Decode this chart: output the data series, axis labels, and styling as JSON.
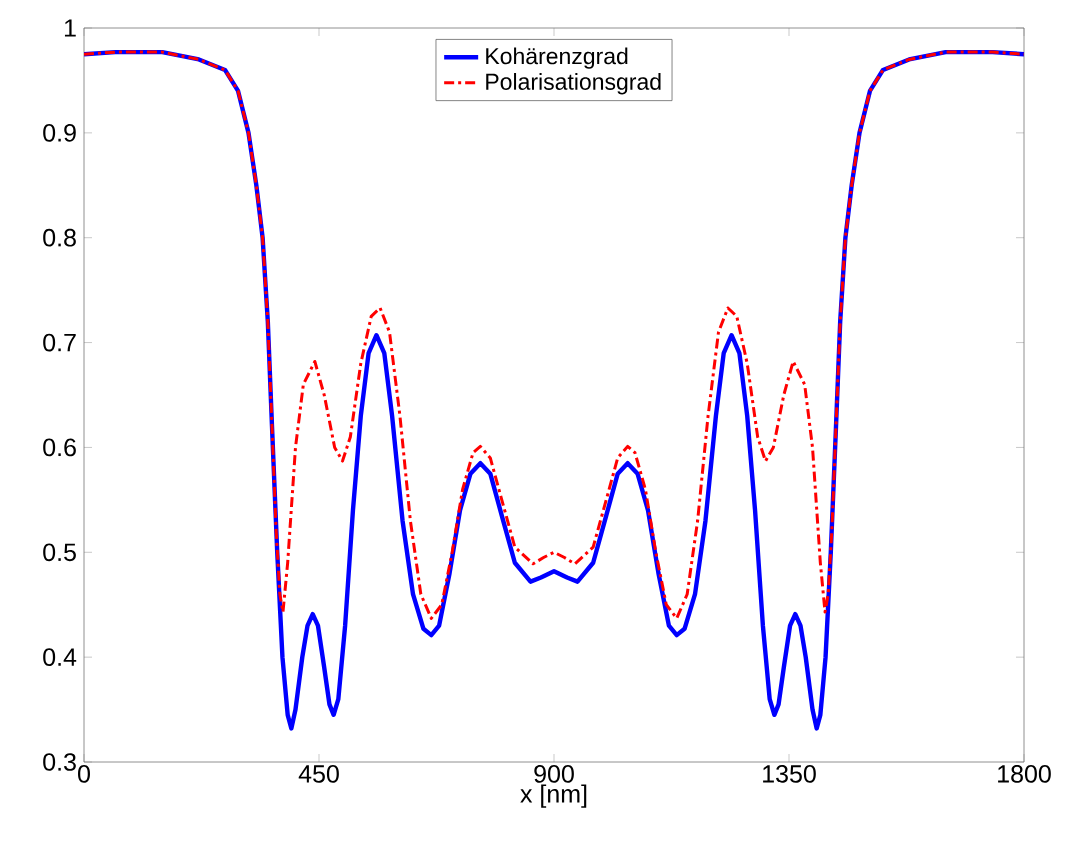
{
  "chart_data": {
    "type": "line",
    "xlabel": "x [nm]",
    "xlim": [
      0,
      1800
    ],
    "ylim": [
      0.3,
      1
    ],
    "xticks": [
      0,
      450,
      900,
      1350,
      1800
    ],
    "yticks": [
      0.3,
      0.4,
      0.5,
      0.6,
      0.7,
      0.8,
      0.9,
      1
    ],
    "grid": false,
    "legend": "top",
    "marker": "none",
    "series": [
      {
        "name": "Kohärenzgrad",
        "color": "#0000ff",
        "line_style": "solid",
        "x": [
          0,
          60,
          150,
          220,
          270,
          295,
          315,
          330,
          342,
          352,
          360,
          370,
          380,
          390,
          397,
          405,
          418,
          428,
          438,
          448,
          460,
          470,
          478,
          487,
          500,
          515,
          530,
          545,
          560,
          575,
          590,
          610,
          630,
          650,
          665,
          680,
          700,
          720,
          740,
          759,
          778,
          800,
          825,
          855,
          875,
          900,
          925,
          945,
          975,
          1000,
          1022,
          1041,
          1060,
          1080,
          1100,
          1120,
          1135,
          1150,
          1170,
          1190,
          1210,
          1225,
          1240,
          1255,
          1270,
          1285,
          1300,
          1313,
          1322,
          1330,
          1340,
          1352,
          1362,
          1372,
          1382,
          1395,
          1403,
          1410,
          1420,
          1430,
          1440,
          1448,
          1458,
          1470,
          1485,
          1505,
          1530,
          1580,
          1650,
          1740,
          1800
        ],
        "values": [
          0.975,
          0.977,
          0.977,
          0.97,
          0.96,
          0.94,
          0.9,
          0.85,
          0.8,
          0.72,
          0.62,
          0.5,
          0.4,
          0.345,
          0.332,
          0.35,
          0.4,
          0.43,
          0.441,
          0.43,
          0.39,
          0.355,
          0.345,
          0.36,
          0.43,
          0.54,
          0.63,
          0.69,
          0.707,
          0.69,
          0.63,
          0.53,
          0.46,
          0.427,
          0.421,
          0.43,
          0.48,
          0.54,
          0.575,
          0.585,
          0.575,
          0.535,
          0.49,
          0.472,
          0.476,
          0.482,
          0.476,
          0.472,
          0.49,
          0.535,
          0.575,
          0.585,
          0.575,
          0.54,
          0.48,
          0.43,
          0.421,
          0.427,
          0.46,
          0.53,
          0.63,
          0.69,
          0.707,
          0.69,
          0.63,
          0.54,
          0.43,
          0.36,
          0.345,
          0.355,
          0.39,
          0.43,
          0.441,
          0.43,
          0.4,
          0.35,
          0.332,
          0.345,
          0.4,
          0.5,
          0.62,
          0.72,
          0.8,
          0.85,
          0.9,
          0.94,
          0.96,
          0.97,
          0.977,
          0.977,
          0.975
        ]
      },
      {
        "name": "Polarisationsgrad",
        "color": "#ff0000",
        "line_style": "dashed",
        "x": [
          0,
          60,
          150,
          220,
          270,
          295,
          315,
          330,
          342,
          352,
          360,
          368,
          375,
          381,
          390,
          405,
          420,
          442,
          460,
          480,
          495,
          510,
          530,
          550,
          567,
          585,
          605,
          625,
          645,
          665,
          685,
          705,
          725,
          745,
          759,
          778,
          800,
          825,
          860,
          880,
          900,
          920,
          940,
          975,
          1000,
          1022,
          1041,
          1055,
          1075,
          1095,
          1115,
          1135,
          1155,
          1175,
          1195,
          1215,
          1233,
          1250,
          1270,
          1290,
          1305,
          1320,
          1340,
          1358,
          1380,
          1395,
          1410,
          1419,
          1425,
          1432,
          1440,
          1448,
          1458,
          1470,
          1485,
          1505,
          1530,
          1580,
          1650,
          1740,
          1800
        ],
        "values": [
          0.975,
          0.977,
          0.977,
          0.97,
          0.96,
          0.94,
          0.9,
          0.85,
          0.8,
          0.72,
          0.62,
          0.52,
          0.46,
          0.443,
          0.49,
          0.6,
          0.66,
          0.682,
          0.65,
          0.6,
          0.587,
          0.61,
          0.68,
          0.725,
          0.733,
          0.71,
          0.63,
          0.53,
          0.46,
          0.437,
          0.45,
          0.5,
          0.56,
          0.595,
          0.601,
          0.59,
          0.55,
          0.505,
          0.489,
          0.495,
          0.5,
          0.495,
          0.489,
          0.505,
          0.55,
          0.59,
          0.601,
          0.595,
          0.56,
          0.5,
          0.45,
          0.437,
          0.46,
          0.53,
          0.63,
          0.71,
          0.733,
          0.725,
          0.68,
          0.61,
          0.587,
          0.6,
          0.65,
          0.682,
          0.66,
          0.6,
          0.49,
          0.443,
          0.46,
          0.52,
          0.62,
          0.72,
          0.8,
          0.85,
          0.9,
          0.94,
          0.96,
          0.97,
          0.977,
          0.977,
          0.975
        ]
      }
    ]
  }
}
